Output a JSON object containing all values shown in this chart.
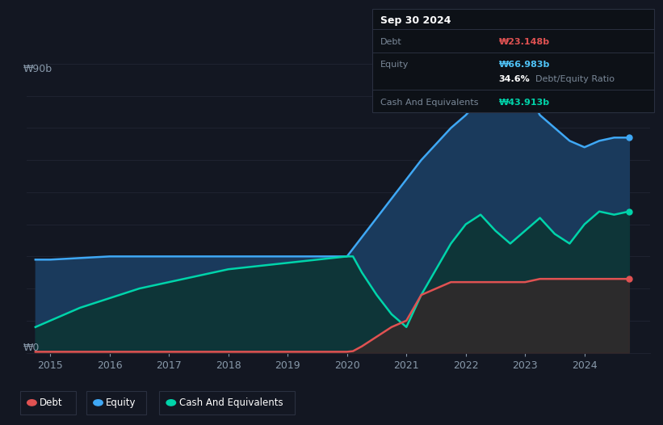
{
  "bg_color": "#131722",
  "plot_bg_color": "#131722",
  "grid_color": "#1e2230",
  "tooltip_bg": "#0d1117",
  "tooltip_border": "#2a3040",
  "title_box": {
    "date": "Sep 30 2024",
    "debt_label": "Debt",
    "debt_value": "₩23.148b",
    "debt_color": "#e05252",
    "equity_label": "Equity",
    "equity_value": "₩66.983b",
    "equity_color": "#4fc3f7",
    "ratio_value": "34.6%",
    "ratio_text": "Debt/Equity Ratio",
    "ratio_color_text": "#7a8898",
    "cash_label": "Cash And Equivalents",
    "cash_value": "₩43.913b",
    "cash_color": "#00d4aa"
  },
  "ylabel_top": "₩90b",
  "ylabel_bottom": "₩0",
  "equity_color": "#3fa8f5",
  "equity_fill_color": "#1a3a5c",
  "debt_color": "#e05252",
  "debt_fill_color": "#3a2828",
  "cash_color": "#00d4aa",
  "cash_fill_color": "#0d3535",
  "legend_items": [
    {
      "label": "Debt",
      "color": "#e05252"
    },
    {
      "label": "Equity",
      "color": "#3fa8f5"
    },
    {
      "label": "Cash And Equivalents",
      "color": "#00d4aa"
    }
  ],
  "x_ticks": [
    2015,
    2016,
    2017,
    2018,
    2019,
    2020,
    2021,
    2022,
    2023,
    2024
  ],
  "ylim": [
    0,
    90
  ],
  "xlim_start": 2014.6,
  "xlim_end": 2025.1,
  "equity_data": {
    "x": [
      2014.75,
      2015.0,
      2015.5,
      2016.0,
      2016.5,
      2017.0,
      2017.5,
      2018.0,
      2018.5,
      2019.0,
      2019.5,
      2020.0,
      2020.25,
      2020.5,
      2020.75,
      2021.0,
      2021.25,
      2021.5,
      2021.75,
      2022.0,
      2022.25,
      2022.5,
      2022.75,
      2023.0,
      2023.25,
      2023.5,
      2023.75,
      2024.0,
      2024.25,
      2024.5,
      2024.75
    ],
    "y": [
      29,
      29,
      29.5,
      30,
      30,
      30,
      30,
      30,
      30,
      30,
      30,
      30,
      36,
      42,
      48,
      54,
      60,
      65,
      70,
      74,
      79,
      84,
      86,
      82,
      74,
      70,
      66,
      64,
      66,
      67,
      67
    ]
  },
  "cash_data": {
    "x": [
      2014.75,
      2015.0,
      2015.5,
      2016.0,
      2016.5,
      2017.0,
      2017.5,
      2018.0,
      2018.5,
      2019.0,
      2019.5,
      2020.0,
      2020.1,
      2020.25,
      2020.5,
      2020.75,
      2021.0,
      2021.25,
      2021.5,
      2021.75,
      2022.0,
      2022.25,
      2022.5,
      2022.75,
      2023.0,
      2023.25,
      2023.5,
      2023.75,
      2024.0,
      2024.25,
      2024.5,
      2024.75
    ],
    "y": [
      8,
      10,
      14,
      17,
      20,
      22,
      24,
      26,
      27,
      28,
      29,
      30,
      30,
      25,
      18,
      12,
      8,
      18,
      26,
      34,
      40,
      43,
      38,
      34,
      38,
      42,
      37,
      34,
      40,
      44,
      43,
      44
    ]
  },
  "debt_data": {
    "x": [
      2014.75,
      2015.0,
      2016.0,
      2017.0,
      2018.0,
      2019.0,
      2020.0,
      2020.1,
      2020.25,
      2020.5,
      2020.75,
      2021.0,
      2021.25,
      2021.5,
      2021.75,
      2022.0,
      2022.25,
      2022.5,
      2022.75,
      2023.0,
      2023.25,
      2023.5,
      2023.75,
      2024.0,
      2024.25,
      2024.5,
      2024.75
    ],
    "y": [
      0.3,
      0.3,
      0.3,
      0.3,
      0.3,
      0.3,
      0.3,
      0.5,
      2,
      5,
      8,
      10,
      18,
      20,
      22,
      22,
      22,
      22,
      22,
      22,
      23,
      23,
      23,
      23,
      23,
      23,
      23
    ]
  }
}
